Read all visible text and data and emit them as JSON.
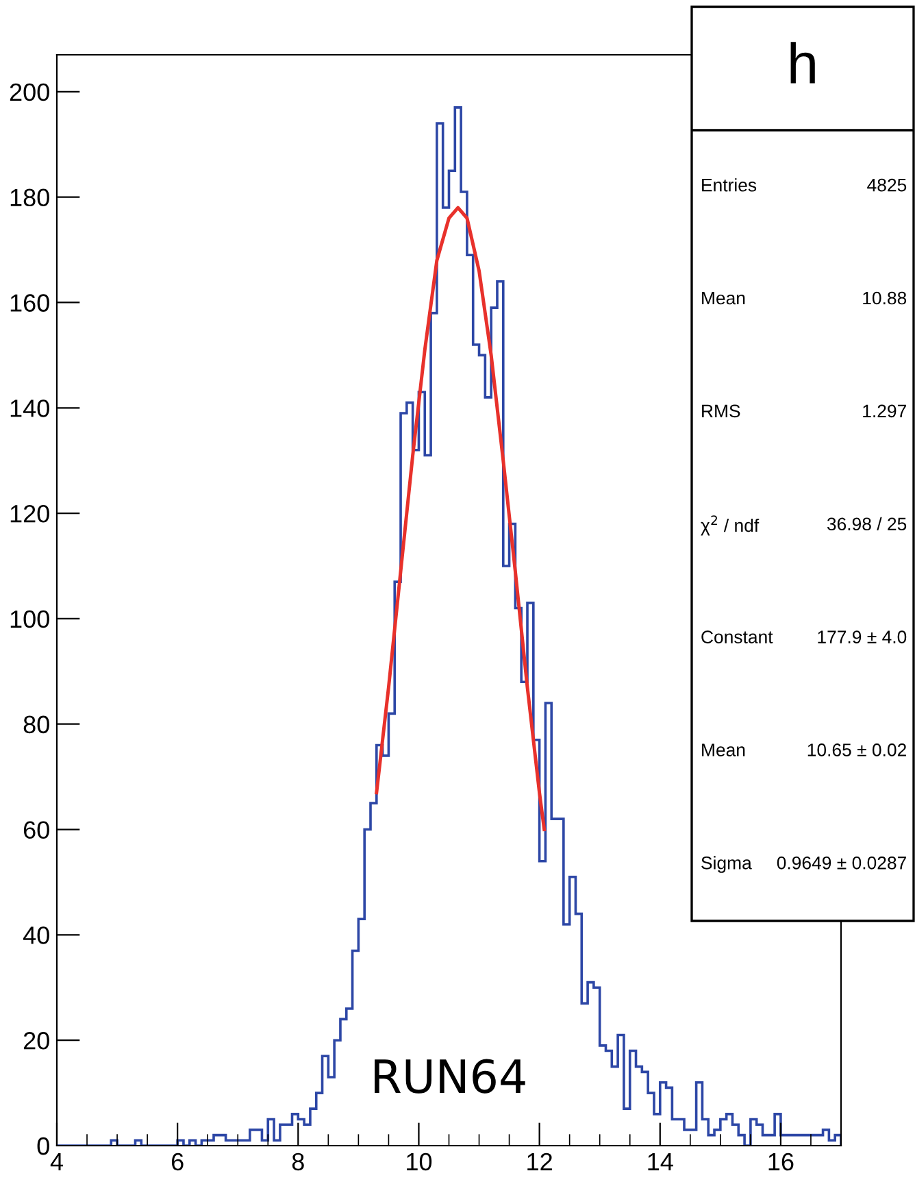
{
  "chart_data": {
    "type": "histogram",
    "title": "h",
    "series": [
      {
        "bins": [
          4.0,
          4.1,
          4.2,
          4.3,
          4.4,
          4.5,
          4.6,
          4.7,
          4.8,
          4.9,
          5.0,
          5.1,
          5.2,
          5.3,
          5.4,
          5.5,
          5.6,
          5.7,
          5.8,
          5.9,
          6.0,
          6.1,
          6.2,
          6.3,
          6.4,
          6.5,
          6.6,
          6.7,
          6.8,
          6.9,
          7.0,
          7.1,
          7.2,
          7.3,
          7.4,
          7.5,
          7.6,
          7.7,
          7.8,
          7.9,
          8.0,
          8.1,
          8.2,
          8.3,
          8.4,
          8.5,
          8.6,
          8.7,
          8.8,
          8.9,
          9.0,
          9.1,
          9.2,
          9.3,
          9.4,
          9.5,
          9.6,
          9.7,
          9.8,
          9.9,
          10.0,
          10.1,
          10.2,
          10.3,
          10.4,
          10.5,
          10.6,
          10.7,
          10.8,
          10.9,
          11.0,
          11.1,
          11.2,
          11.3,
          11.4,
          11.5,
          11.6,
          11.7,
          11.8,
          11.9,
          12.0,
          12.1,
          12.2,
          12.3,
          12.4,
          12.5,
          12.6,
          12.7,
          12.8,
          12.9,
          13.0,
          13.1,
          13.2,
          13.3,
          13.4,
          13.5,
          13.6,
          13.7,
          13.8,
          13.9,
          14.0,
          14.1,
          14.2,
          14.3,
          14.4,
          14.5,
          14.6,
          14.7,
          14.8,
          14.9,
          15.0,
          15.1,
          15.2,
          15.3,
          15.4,
          15.5,
          15.6,
          15.7,
          15.8,
          15.9,
          16.0,
          16.1,
          16.2,
          16.3,
          16.4,
          16.5,
          16.6,
          16.7,
          16.8,
          16.9,
          17.0
        ],
        "color": "#2d47a6",
        "values": [
          0,
          0,
          0,
          0,
          0,
          0,
          0,
          0,
          0,
          1,
          0,
          0,
          0,
          1,
          0,
          0,
          0,
          0,
          0,
          0,
          1,
          0,
          1,
          0,
          1,
          1,
          2,
          2,
          1,
          1,
          1,
          1,
          3,
          3,
          1,
          5,
          1,
          4,
          4,
          6,
          5,
          4,
          7,
          10,
          17,
          13,
          20,
          24,
          26,
          37,
          43,
          60,
          65,
          76,
          74,
          82,
          107,
          139,
          141,
          132,
          143,
          131,
          158,
          194,
          178,
          185,
          197,
          181,
          169,
          152,
          150,
          142,
          159,
          164,
          110,
          118,
          102,
          88,
          103,
          77,
          54,
          84,
          62,
          62,
          42,
          51,
          44,
          27,
          31,
          30,
          19,
          18,
          15,
          21,
          7,
          18,
          15,
          14,
          10,
          6,
          12,
          11,
          5,
          5,
          3,
          3,
          12,
          5,
          2,
          3,
          5,
          6,
          4,
          2,
          0,
          5,
          4,
          2,
          2,
          6,
          2,
          2,
          2,
          2,
          2,
          2,
          2,
          3,
          1,
          2
        ]
      },
      {
        "type": "line",
        "color": "#e8312b",
        "x": [
          9.3,
          9.5,
          9.7,
          9.9,
          10.1,
          10.3,
          10.5,
          10.65,
          10.8,
          11.0,
          11.2,
          11.4,
          11.6,
          11.8,
          12.0,
          12.08
        ],
        "values": [
          67,
          87,
          109,
          131,
          151,
          168,
          176,
          178,
          176,
          166,
          150,
          130,
          109,
          87,
          67,
          60
        ]
      }
    ],
    "xlim": [
      4,
      17
    ],
    "xticks": [
      4,
      6,
      8,
      10,
      12,
      14,
      16
    ],
    "ylim": [
      0,
      207
    ],
    "yticks": [
      0,
      20,
      40,
      60,
      80,
      100,
      120,
      140,
      160,
      180,
      200
    ],
    "annotations": [
      "RUN64",
      "Entries",
      "4825",
      "Mean",
      "10.88",
      "RMS",
      "1.297",
      "χ$^{2}$ / ndf",
      "36.98 / 25",
      "Constant",
      "177.9 ± 4.0",
      "Mean",
      "10.65 ± 0.02",
      "Sigma",
      "0.9649 ± 0.0287"
    ]
  }
}
